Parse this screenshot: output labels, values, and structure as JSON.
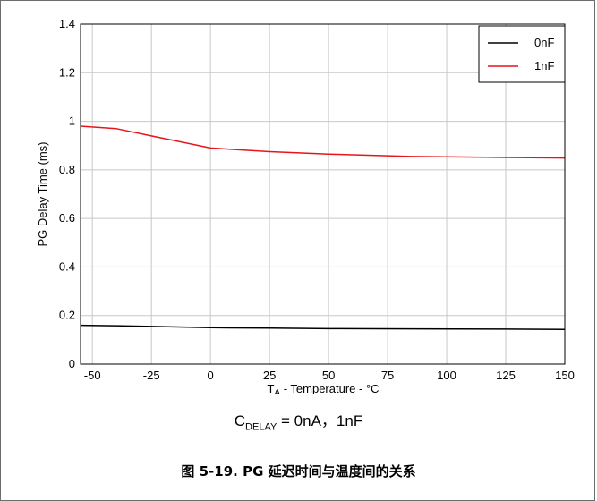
{
  "chart_data": {
    "type": "line",
    "ylabel": "PG Delay Time (ms)",
    "xlabel": {
      "main": "T",
      "sub": "A",
      "rest": " - Temperature - °C"
    },
    "xlim": [
      -55,
      150
    ],
    "ylim": [
      0,
      1.4
    ],
    "xticks": [
      -50,
      -25,
      0,
      25,
      50,
      75,
      100,
      125,
      150
    ],
    "yticks": [
      0,
      0.2,
      0.4,
      0.6,
      0.8,
      1,
      1.2,
      1.4
    ],
    "ytick_labels": [
      "0",
      "0.2",
      "0.4",
      "0.6",
      "0.8",
      "1",
      "1.2",
      "1.4"
    ],
    "grid": true,
    "legend_position": "top-right",
    "series": [
      {
        "name": "0nF",
        "color": "#000000",
        "x": [
          -55,
          -40,
          -25,
          0,
          25,
          50,
          85,
          125,
          150
        ],
        "y": [
          0.16,
          0.158,
          0.155,
          0.15,
          0.148,
          0.146,
          0.145,
          0.144,
          0.143
        ]
      },
      {
        "name": "1nF",
        "color": "#e8141a",
        "x": [
          -55,
          -40,
          -25,
          0,
          25,
          50,
          85,
          125,
          150
        ],
        "y": [
          0.98,
          0.97,
          0.94,
          0.89,
          0.875,
          0.865,
          0.855,
          0.851,
          0.849
        ]
      }
    ]
  },
  "condition": {
    "main": "C",
    "sub": "DELAY",
    "rest": " = 0nA，1nF"
  },
  "caption": "图 5-19. PG 延迟时间与温度间的关系"
}
